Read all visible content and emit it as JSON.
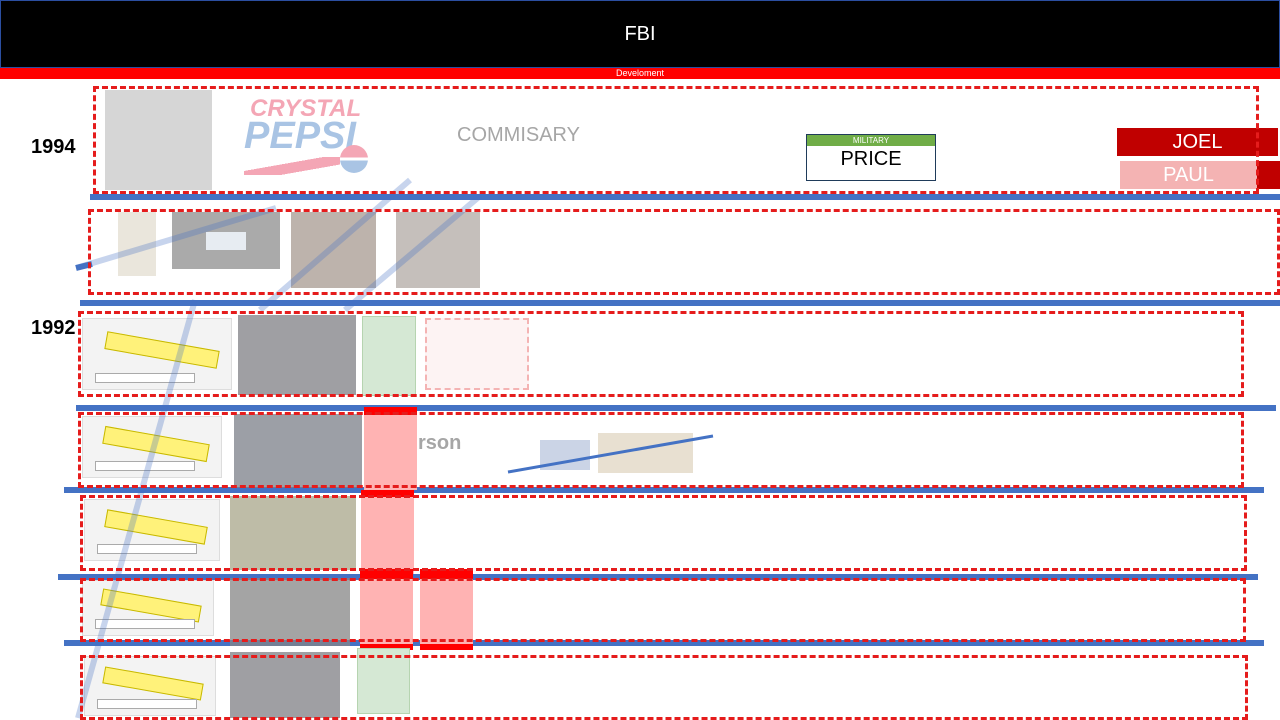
{
  "header": {
    "title": "FBI",
    "subtitle": "Develoment"
  },
  "years": {
    "y1994": "1994",
    "y1992": "1992"
  },
  "row1": {
    "brand_line1": "CRYSTAL",
    "brand_line2": "PEPSI",
    "location": "COMMISARY",
    "military_tag": "MILITARY",
    "price": "PRICE"
  },
  "people": {
    "joel": "JOEL",
    "paul": "PAUL"
  },
  "row4": {
    "partial_text": "rson"
  },
  "colors": {
    "header_bg": "#000000",
    "sub_bar": "#ff0000",
    "timeline_line": "#4472c4",
    "dashed_box": "#e51c1c",
    "joel_bg": "#c00000",
    "paul_bg": "#f4b3b3",
    "military_tag": "#70ad47"
  },
  "icons": [
    "building-photo",
    "pepsi-logo",
    "map-thumbnail",
    "person-photo",
    "document-photo",
    "poster-photo"
  ]
}
